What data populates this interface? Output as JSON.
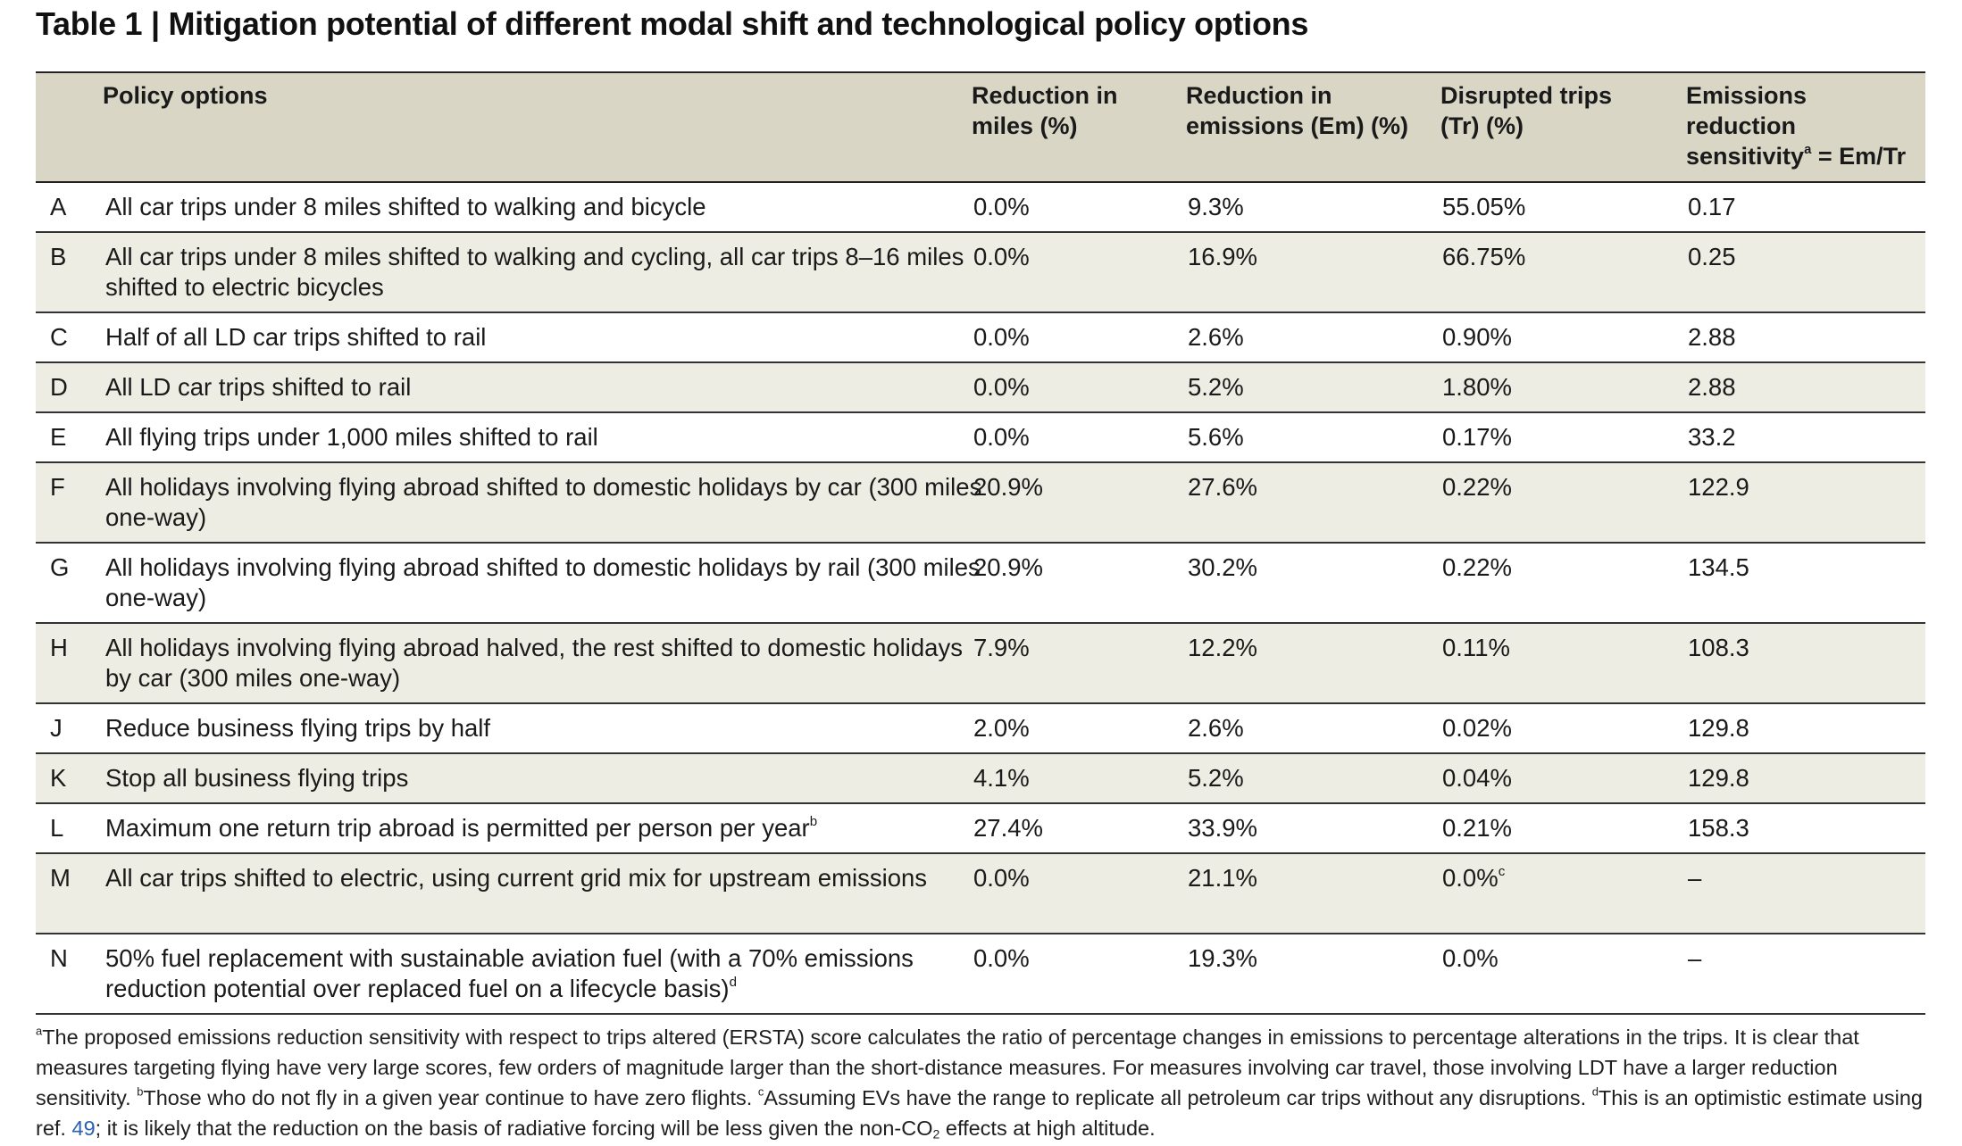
{
  "title": "Table 1 | Mitigation potential of different modal shift and technological policy options",
  "headers": {
    "policy_options": "Policy options",
    "miles_line1": "Reduction in",
    "miles_line2": "miles (%)",
    "emissions_line1": "Reduction in",
    "emissions_line2": "emissions (Em) (%)",
    "trips_line1": "Disrupted trips",
    "trips_line2": "(Tr) (%)",
    "sens_line1": "Emissions",
    "sens_line2": "reduction",
    "sens_line3_pre": "sensitivity",
    "sens_line3_sup": "a",
    "sens_line3_post": " = Em/Tr"
  },
  "rows": [
    {
      "letter": "A",
      "option": "All car trips under 8 miles shifted to walking and bicycle",
      "sup": "",
      "miles": "0.0%",
      "emissions": "9.3%",
      "trips": "55.05%",
      "trips_sup": "",
      "sensitivity": "0.17"
    },
    {
      "letter": "B",
      "option": "All car trips under 8 miles shifted to walking and cycling, all car trips 8–16 miles shifted to electric bicycles",
      "sup": "",
      "miles": "0.0%",
      "emissions": "16.9%",
      "trips": "66.75%",
      "trips_sup": "",
      "sensitivity": "0.25"
    },
    {
      "letter": "C",
      "option": "Half of all LD car trips shifted to rail",
      "sup": "",
      "miles": "0.0%",
      "emissions": "2.6%",
      "trips": "0.90%",
      "trips_sup": "",
      "sensitivity": "2.88"
    },
    {
      "letter": "D",
      "option": "All LD car trips shifted to rail",
      "sup": "",
      "miles": "0.0%",
      "emissions": "5.2%",
      "trips": "1.80%",
      "trips_sup": "",
      "sensitivity": "2.88"
    },
    {
      "letter": "E",
      "option": "All flying trips under 1,000 miles shifted to rail",
      "sup": "",
      "miles": "0.0%",
      "emissions": "5.6%",
      "trips": "0.17%",
      "trips_sup": "",
      "sensitivity": "33.2"
    },
    {
      "letter": "F",
      "option": "All holidays involving flying abroad shifted to domestic holidays by car (300 miles one-way)",
      "sup": "",
      "miles": "20.9%",
      "emissions": "27.6%",
      "trips": "0.22%",
      "trips_sup": "",
      "sensitivity": "122.9"
    },
    {
      "letter": "G",
      "option": "All holidays involving flying abroad shifted to domestic holidays by rail (300 miles one-way)",
      "sup": "",
      "miles": "20.9%",
      "emissions": "30.2%",
      "trips": "0.22%",
      "trips_sup": "",
      "sensitivity": "134.5"
    },
    {
      "letter": "H",
      "option": "All holidays involving flying abroad halved, the rest shifted to domestic holidays by car (300 miles one-way)",
      "sup": "",
      "miles": "7.9%",
      "emissions": "12.2%",
      "trips": "0.11%",
      "trips_sup": "",
      "sensitivity": "108.3"
    },
    {
      "letter": "J",
      "option": "Reduce business flying trips by half",
      "sup": "",
      "miles": "2.0%",
      "emissions": "2.6%",
      "trips": "0.02%",
      "trips_sup": "",
      "sensitivity": "129.8"
    },
    {
      "letter": "K",
      "option": "Stop all business flying trips",
      "sup": "",
      "miles": "4.1%",
      "emissions": "5.2%",
      "trips": "0.04%",
      "trips_sup": "",
      "sensitivity": "129.8"
    },
    {
      "letter": "L",
      "option": "Maximum one return trip abroad is permitted per person per year",
      "sup": "b",
      "miles": "27.4%",
      "emissions": "33.9%",
      "trips": "0.21%",
      "trips_sup": "",
      "sensitivity": "158.3"
    },
    {
      "letter": "M",
      "option": "All car trips shifted to electric, using current grid mix for upstream emissions",
      "sup": "",
      "miles": "0.0%",
      "emissions": "21.1%",
      "trips": "0.0%",
      "trips_sup": "c",
      "sensitivity": "–"
    },
    {
      "letter": "N",
      "option": "50% fuel replacement with sustainable aviation fuel (with a 70% emissions reduction potential over replaced fuel on a lifecycle basis)",
      "sup": "d",
      "miles": "0.0%",
      "emissions": "19.3%",
      "trips": "0.0%",
      "trips_sup": "",
      "sensitivity": "–"
    }
  ],
  "footnote": {
    "a_mark": "a",
    "a_text": "The proposed emissions reduction sensitivity with respect to trips altered (ERSTA) score calculates the ratio of percentage changes in emissions to percentage alterations in the trips. It is clear that measures targeting flying have very large scores, few orders of magnitude larger than the short-distance measures. For measures involving car travel, those involving LDT have a larger reduction sensitivity.",
    "b_mark": "b",
    "b_text": "Those who do not fly in a given year continue to have zero flights.",
    "c_mark": "c",
    "c_text": "Assuming EVs have the range to replicate all petroleum car trips without any disruptions.",
    "d_mark": "d",
    "d_text_pre": "This is an optimistic estimate using ref.",
    "ref": "49",
    "d_text_mid": "; it is likely that the reduction on the basis of radiative forcing will be less given the non-CO",
    "d_sub": "2",
    "d_text_post": " effects at high altitude."
  }
}
